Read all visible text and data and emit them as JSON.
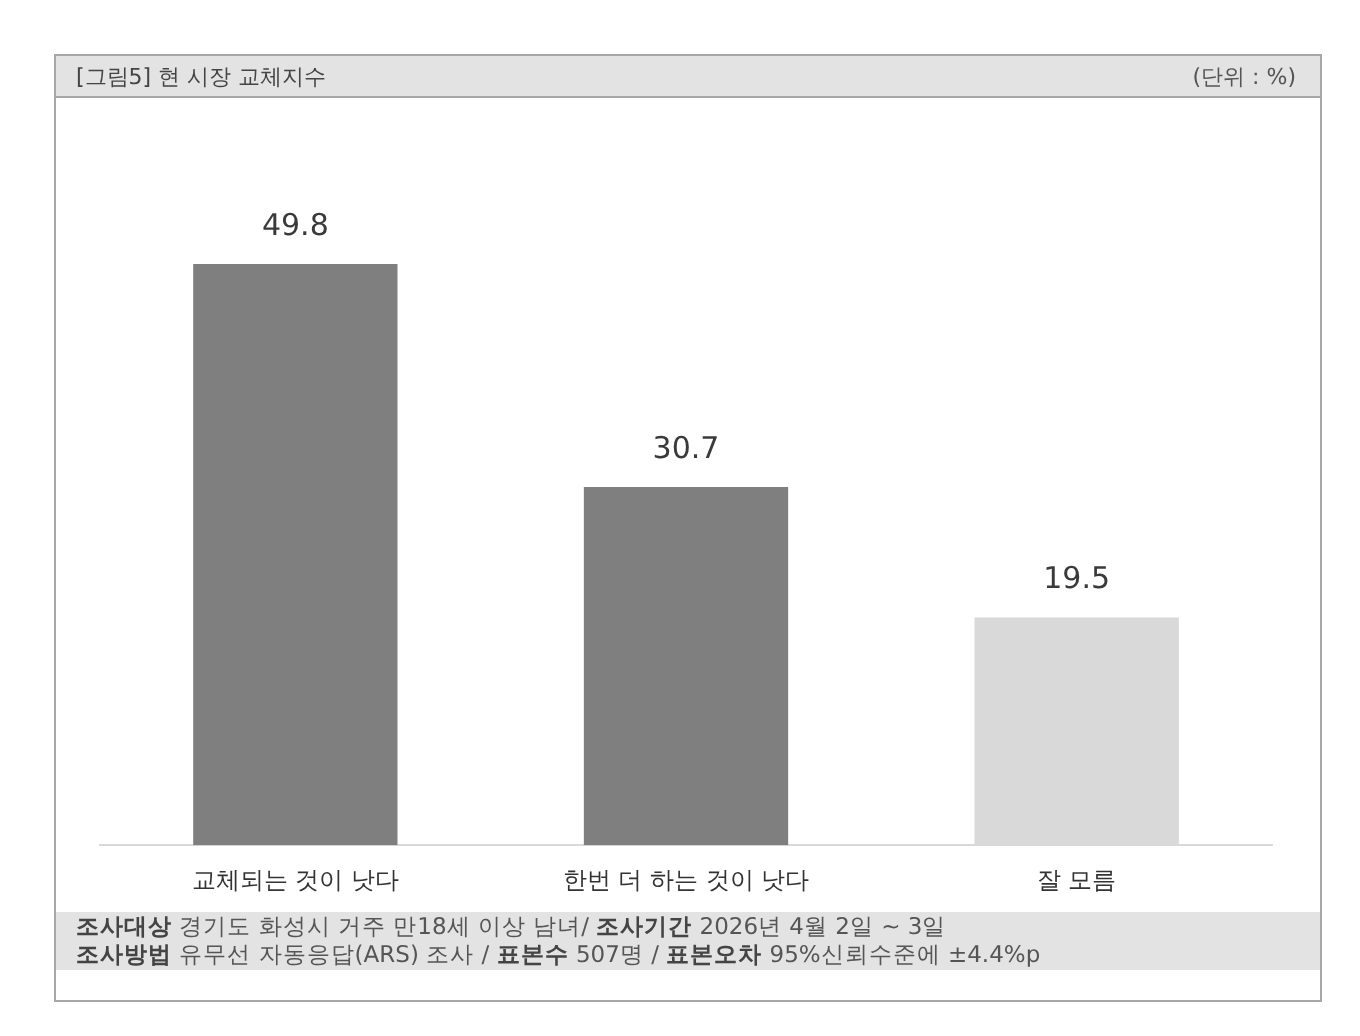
{
  "chart_data": {
    "type": "bar",
    "title": "[그림5] 현 시장 교체지수",
    "annotations": [
      "(단위 : %)",
      "조사대상 경기도 화성시 거주 만18세 이상 남녀/ 조사기간 2026년 4월 2일 ~ 3일",
      "조사방법 유무선 자동응답(ARS) 조사 / 표본수 507명 / 표본오차 95%신뢰수준에 ±4.4%p"
    ],
    "categories": [
      "교체되는 것이 낫다",
      "한번 더 하는 것이 낫다",
      "잘 모름"
    ],
    "values": [
      49.8,
      30.7,
      19.5
    ],
    "colors": [
      "#7f7f7f",
      "#7f7f7f",
      "#d9d9d9"
    ],
    "data_labels": true,
    "tick_labels": "x"
  }
}
